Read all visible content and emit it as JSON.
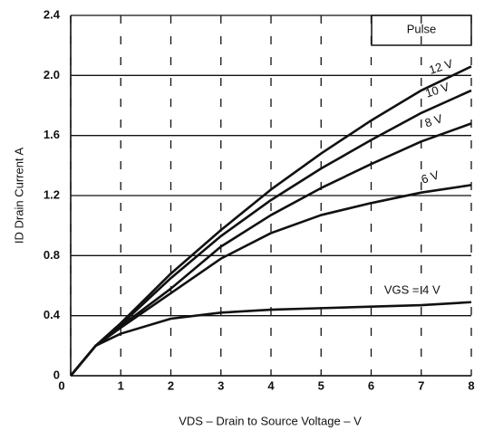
{
  "chart_data": {
    "type": "line",
    "xlabel": "VDS – Drain to Source Voltage – V",
    "ylabel": "ID  Drain Current  A",
    "annotation": "Pulse",
    "x": [
      0,
      0.5,
      1,
      2,
      3,
      4,
      5,
      6,
      7,
      8
    ],
    "series": [
      {
        "name": "12 V",
        "color": "#111111",
        "values": [
          0,
          0.2,
          0.35,
          0.68,
          0.97,
          1.24,
          1.48,
          1.7,
          1.9,
          2.06
        ]
      },
      {
        "name": "10 V",
        "color": "#111111",
        "values": [
          0,
          0.2,
          0.34,
          0.65,
          0.93,
          1.17,
          1.38,
          1.57,
          1.75,
          1.9
        ]
      },
      {
        "name": "8 V",
        "color": "#111111",
        "values": [
          0,
          0.2,
          0.33,
          0.58,
          0.86,
          1.07,
          1.25,
          1.41,
          1.56,
          1.68
        ]
      },
      {
        "name": "6 V",
        "color": "#111111",
        "values": [
          0,
          0.2,
          0.32,
          0.55,
          0.78,
          0.95,
          1.07,
          1.15,
          1.22,
          1.27
        ]
      },
      {
        "name": "VGS = 4 V",
        "color": "#111111",
        "values": [
          0,
          0.2,
          0.28,
          0.38,
          0.42,
          0.44,
          0.45,
          0.46,
          0.47,
          0.49
        ]
      }
    ],
    "xlim": [
      0,
      8
    ],
    "xticks": [
      0,
      1,
      2,
      3,
      4,
      5,
      6,
      7,
      8
    ],
    "ylim": [
      0,
      2.4
    ],
    "yticks": [
      0,
      {
        "value": 0.4,
        "label": "0.4"
      },
      {
        "value": 0.8,
        "label": "0.8"
      },
      {
        "value": 1.2,
        "label": "1.2"
      },
      {
        "value": 1.6,
        "label": "1.6"
      },
      {
        "value": 2.0,
        "label": "2.0"
      },
      {
        "value": 2.4,
        "label": "2.4"
      }
    ],
    "grid": true
  }
}
